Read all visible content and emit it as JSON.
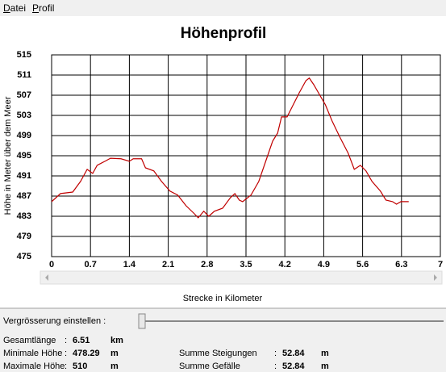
{
  "menu": [
    "Datei",
    "Profil"
  ],
  "chart_data": {
    "type": "line",
    "title": "Höhenprofil",
    "y_label": "Höhe in Meter über dem Meer",
    "x_label": "Strecke in Kilometer",
    "color": "#c00000",
    "grid": true,
    "xlim": [
      0,
      7
    ],
    "xticks": [
      0,
      0.7,
      1.4,
      2.1,
      2.8,
      3.5,
      4.2,
      4.9,
      5.6,
      6.3,
      7
    ],
    "ylim": [
      475,
      515
    ],
    "yticks": [
      475,
      479,
      483,
      487,
      491,
      495,
      499,
      503,
      507,
      511,
      515
    ],
    "x": [
      0,
      0.16,
      0.38,
      0.52,
      0.64,
      0.74,
      0.82,
      0.96,
      1.06,
      1.25,
      1.4,
      1.47,
      1.62,
      1.69,
      1.84,
      1.98,
      2.13,
      2.27,
      2.42,
      2.57,
      2.64,
      2.74,
      2.83,
      2.93,
      3.08,
      3.22,
      3.3,
      3.38,
      3.44,
      3.59,
      3.73,
      3.88,
      3.98,
      4.07,
      4.14,
      4.24,
      4.35,
      4.46,
      4.58,
      4.64,
      4.72,
      4.83,
      4.93,
      5.05,
      5.19,
      5.34,
      5.45,
      5.56,
      5.66,
      5.77,
      5.92,
      6.02,
      6.14,
      6.21,
      6.29,
      6.43
    ],
    "values": [
      485.9,
      487.5,
      487.8,
      489.9,
      492.3,
      491.5,
      493.1,
      493.9,
      494.5,
      494.4,
      493.9,
      494.4,
      494.4,
      492.6,
      492.0,
      489.9,
      488.0,
      487.2,
      485.1,
      483.5,
      482.7,
      484.0,
      483.0,
      484.0,
      484.6,
      486.7,
      487.5,
      486.2,
      485.9,
      487.2,
      489.9,
      494.7,
      497.9,
      499.5,
      502.7,
      502.7,
      505.1,
      507.5,
      509.9,
      510.4,
      509.1,
      507.0,
      505.1,
      501.9,
      498.7,
      495.5,
      492.3,
      493.1,
      492.0,
      489.9,
      488.0,
      486.2,
      485.9,
      485.4,
      485.9,
      485.9
    ]
  },
  "zoom_label": "Vergrösserung einstellen :",
  "stats": {
    "separator": ":",
    "left": [
      [
        "Gesamtlänge",
        "6.51",
        "km"
      ],
      [
        "Minimale Höhe",
        "478.29",
        "m"
      ],
      [
        "Maximale Höhe",
        "510",
        "m"
      ]
    ],
    "right": [
      [
        "Summe Steigungen",
        "52.84",
        "m"
      ],
      [
        "Summe Gefälle",
        "52.84",
        "m"
      ]
    ]
  }
}
